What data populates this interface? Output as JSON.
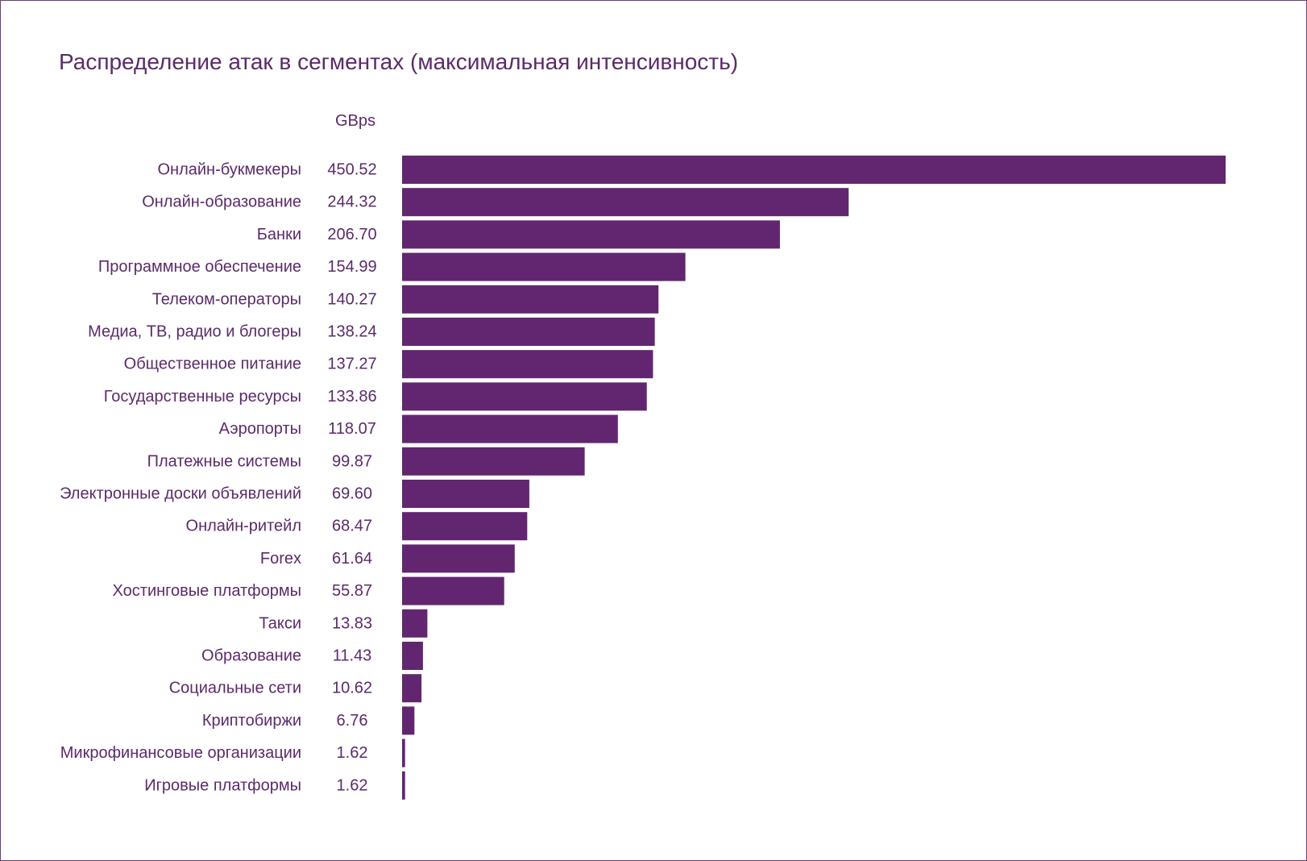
{
  "chart_data": {
    "type": "bar",
    "orientation": "horizontal",
    "title": "Распределение атак в сегментах (максимальная интенсивность)",
    "value_column_header": "GBps",
    "bar_color": "#622670",
    "text_color": "#5b2a6b",
    "border_color": "#6d3a7c",
    "categories": [
      "Онлайн-букмекеры",
      "Онлайн-образование",
      "Банки",
      "Программное обеспечение",
      "Телеком-операторы",
      "Медиа, ТВ, радио и блогеры",
      "Общественное питание",
      "Государственные ресурсы",
      "Аэропорты",
      "Платежные системы",
      "Электронные доски объявлений",
      "Онлайн-ритейл",
      "Forex",
      "Хостинговые платформы",
      "Такси",
      "Образование",
      "Социальные сети",
      "Криптобиржи",
      "Микрофинансовые организации",
      "Игровые платформы"
    ],
    "values": [
      450.52,
      244.32,
      206.7,
      154.99,
      140.27,
      138.24,
      137.27,
      133.86,
      118.07,
      99.87,
      69.6,
      68.47,
      61.64,
      55.87,
      13.83,
      11.43,
      10.62,
      6.76,
      1.62,
      1.62
    ],
    "value_labels": [
      "450.52",
      "244.32",
      "206.70",
      "154.99",
      "140.27",
      "138.24",
      "137.27",
      "133.86",
      "118.07",
      "99.87",
      "69.60",
      "68.47",
      "61.64",
      "55.87",
      "13.83",
      "11.43",
      "10.62",
      "6.76",
      "1.62",
      "1.62"
    ],
    "xlim": [
      0,
      450.52
    ],
    "grid": false,
    "legend": "none"
  }
}
